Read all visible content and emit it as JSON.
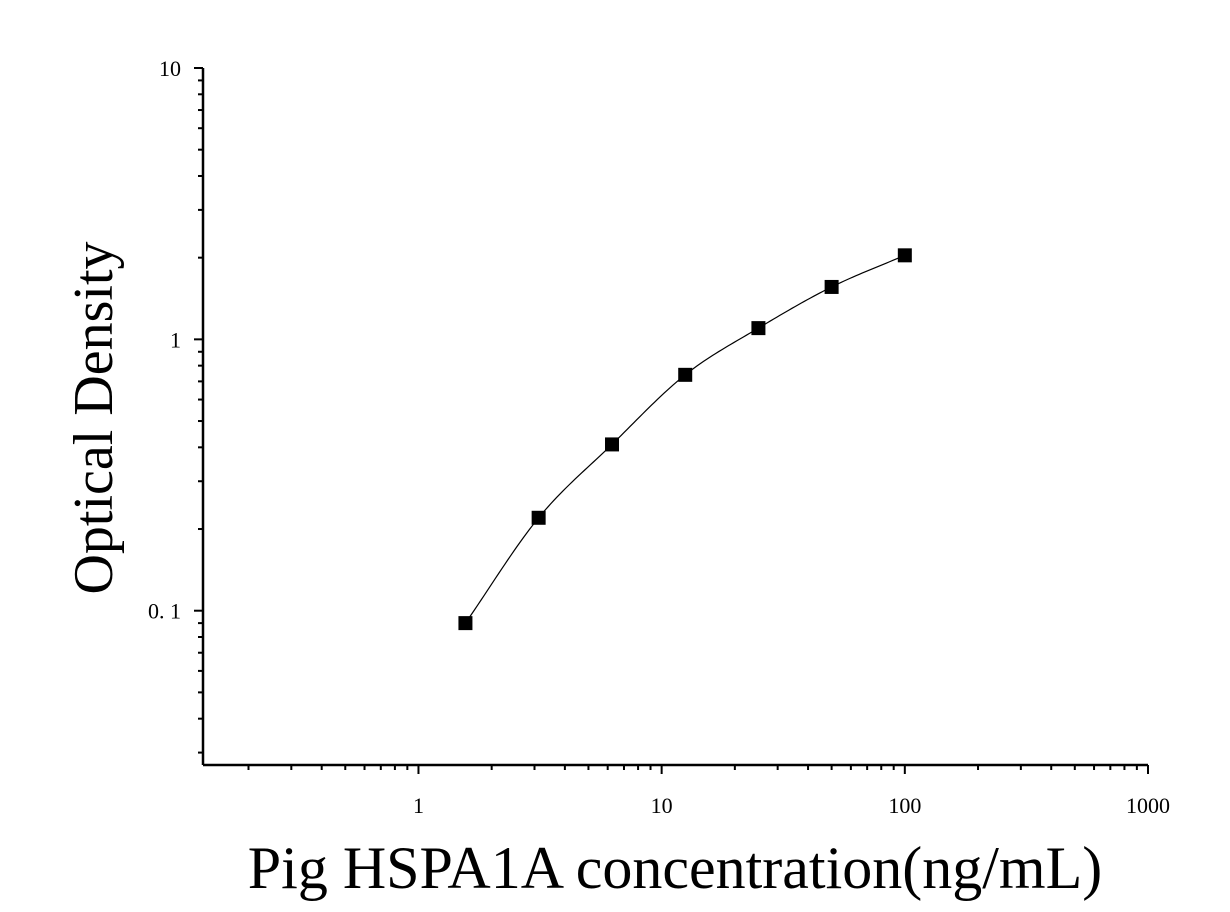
{
  "chart_data": {
    "type": "scatter",
    "title": "",
    "xlabel": "Pig HSPA1A concentration(ng/mL)",
    "ylabel": "Optical Density",
    "x_scale": "log",
    "y_scale": "log",
    "xlim": [
      0.13,
      1000
    ],
    "ylim": [
      0.027,
      10
    ],
    "x_ticks": [
      {
        "value": 1,
        "label": "1"
      },
      {
        "value": 10,
        "label": "10"
      },
      {
        "value": 100,
        "label": "100"
      },
      {
        "value": 1000,
        "label": "1000"
      }
    ],
    "y_ticks": [
      {
        "value": 10,
        "label": "10"
      },
      {
        "value": 1,
        "label": "1"
      },
      {
        "value": 0.1,
        "label": "0. 1"
      }
    ],
    "grid": false,
    "legend": "none",
    "marker": "square",
    "fit_curve": true,
    "color": "#000000",
    "series": [
      {
        "x": [
          1.56,
          3.12,
          6.25,
          12.5,
          25,
          50,
          100
        ],
        "y": [
          0.09,
          0.22,
          0.41,
          0.74,
          1.1,
          1.56,
          2.04
        ]
      }
    ]
  }
}
